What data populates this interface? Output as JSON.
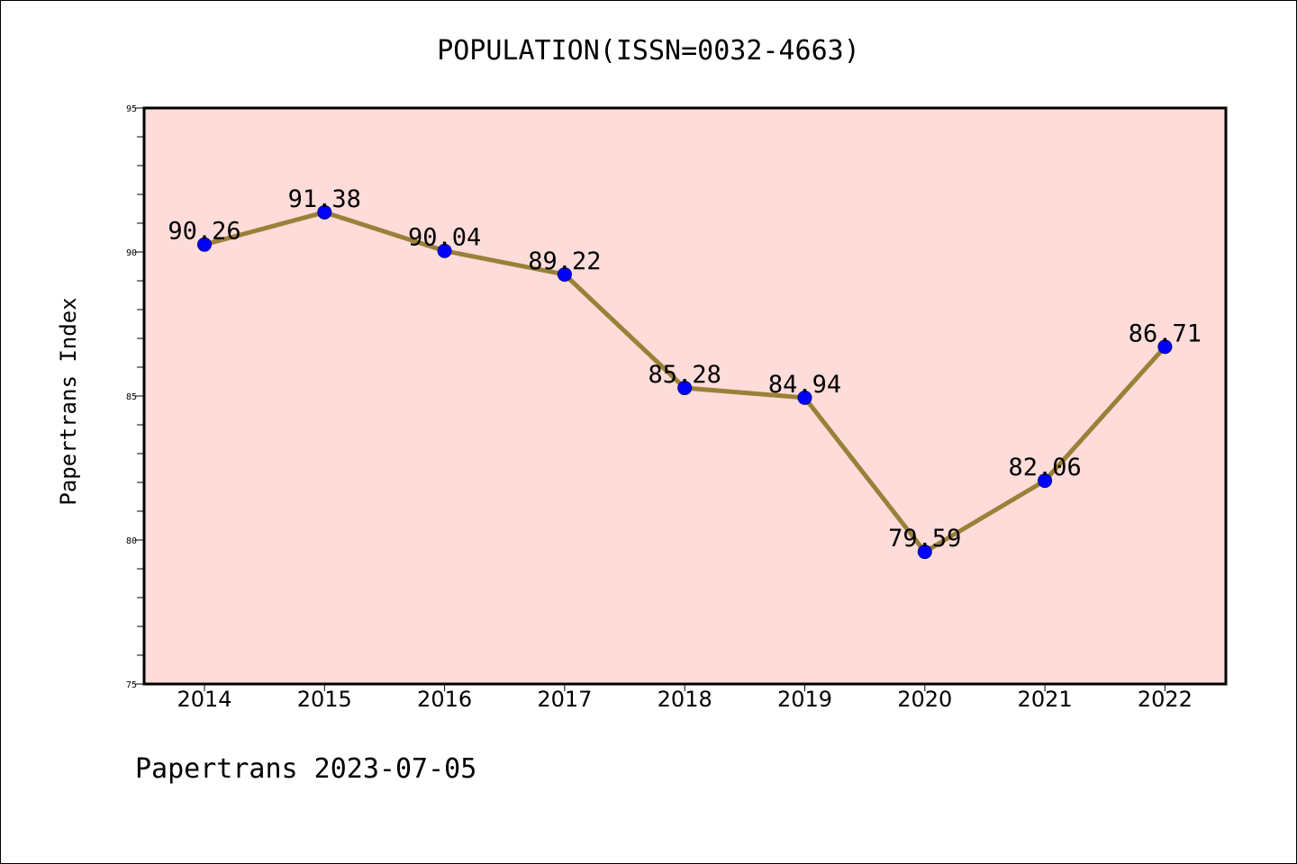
{
  "chart_data": {
    "type": "line",
    "title": "POPULATION(ISSN=0032-4663)",
    "xlabel": "",
    "ylabel": "Papertrans Index",
    "categories": [
      "2014",
      "2015",
      "2016",
      "2017",
      "2018",
      "2019",
      "2020",
      "2021",
      "2022"
    ],
    "values": [
      90.26,
      91.38,
      90.04,
      89.22,
      85.28,
      84.94,
      79.59,
      82.06,
      86.71
    ],
    "data_labels": [
      "90.26",
      "91.38",
      "90.04",
      "89.22",
      "85.28",
      "84.94",
      "79.59",
      "82.06",
      "86.71"
    ],
    "ylim": [
      75,
      95
    ],
    "yticks": [
      75,
      80,
      85,
      90,
      95
    ],
    "grid": false,
    "legend": "none",
    "footer": "Papertrans 2023-07-05",
    "colors": {
      "plot_background": "#fddcd9",
      "line": "#9a8038",
      "marker": "#0000ff"
    }
  }
}
